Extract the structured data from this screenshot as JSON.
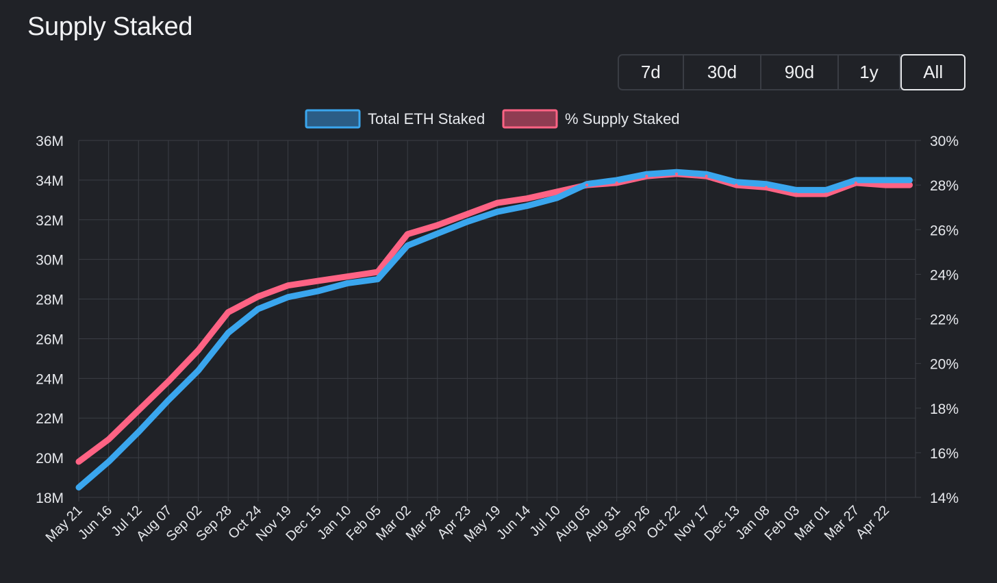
{
  "page": {
    "title": "Supply Staked"
  },
  "range_selector": {
    "options": [
      {
        "label": "7d",
        "active": false
      },
      {
        "label": "30d",
        "active": false
      },
      {
        "label": "90d",
        "active": false
      },
      {
        "label": "1y",
        "active": false
      },
      {
        "label": "All",
        "active": true
      }
    ]
  },
  "colors": {
    "background": "#202227",
    "grid": "#3b3e45",
    "text": "#e6e8ec",
    "eth_line": "#3aa6ee",
    "eth_fill": "#2b5d86",
    "pct_line": "#ff6384",
    "pct_fill": "#8f3c52"
  },
  "chart_data": {
    "type": "line",
    "title": "Supply Staked",
    "legend": [
      "Total ETH Staked",
      "% Supply Staked"
    ],
    "legend_position": "top-center",
    "grid": true,
    "x_ticks": [
      "May 21",
      "Jun 16",
      "Jul 12",
      "Aug 07",
      "Sep 02",
      "Sep 28",
      "Oct 24",
      "Nov 19",
      "Dec 15",
      "Jan 10",
      "Feb 05",
      "Mar 02",
      "Mar 28",
      "Apr 23",
      "May 19",
      "Jun 14",
      "Jul 10",
      "Aug 05",
      "Aug 31",
      "Sep 26",
      "Oct 22",
      "Nov 17",
      "Dec 13",
      "Jan 08",
      "Feb 03",
      "Mar 01",
      "Mar 27",
      "Apr 22"
    ],
    "y_left": {
      "label": "Total ETH Staked",
      "range_millions": [
        18,
        36
      ],
      "tick_step_millions": 2,
      "tick_labels": [
        "36M",
        "34M",
        "32M",
        "30M",
        "28M",
        "26M",
        "24M",
        "22M",
        "20M",
        "18M"
      ]
    },
    "y_right": {
      "label": "% Supply Staked",
      "range_percent": [
        14,
        30
      ],
      "tick_step_percent": 2,
      "tick_labels": [
        "30%",
        "28%",
        "26%",
        "24%",
        "22%",
        "20%",
        "18%",
        "16%",
        "14%"
      ]
    },
    "series": [
      {
        "name": "Total ETH Staked",
        "axis": "left",
        "unit": "M ETH",
        "x_index": [
          0,
          1,
          2,
          3,
          4,
          5,
          6,
          7,
          8,
          9,
          10,
          11,
          12,
          13,
          14,
          15,
          16,
          17,
          18,
          19,
          20,
          21,
          22,
          23,
          24,
          25,
          26,
          27,
          27.8
        ],
        "values": [
          18.5,
          19.8,
          21.3,
          22.9,
          24.4,
          26.3,
          27.5,
          28.1,
          28.4,
          28.8,
          29.0,
          30.7,
          31.3,
          31.9,
          32.4,
          32.7,
          33.1,
          33.8,
          34.0,
          34.3,
          34.4,
          34.3,
          33.9,
          33.8,
          33.5,
          33.5,
          34.0,
          34.0,
          34.0
        ]
      },
      {
        "name": "% Supply Staked",
        "axis": "right",
        "unit": "%",
        "x_index": [
          0,
          1,
          2,
          3,
          4,
          5,
          6,
          7,
          8,
          9,
          10,
          11,
          12,
          13,
          14,
          15,
          16,
          17,
          18,
          19,
          20,
          21,
          22,
          23,
          24,
          25,
          26,
          27,
          27.8
        ],
        "values": [
          15.6,
          16.6,
          17.9,
          19.2,
          20.6,
          22.3,
          23.0,
          23.5,
          23.7,
          23.9,
          24.1,
          25.8,
          26.2,
          26.7,
          27.2,
          27.4,
          27.7,
          28.0,
          28.1,
          28.4,
          28.5,
          28.4,
          28.0,
          27.9,
          27.6,
          27.6,
          28.1,
          28.0,
          28.0
        ]
      }
    ]
  }
}
